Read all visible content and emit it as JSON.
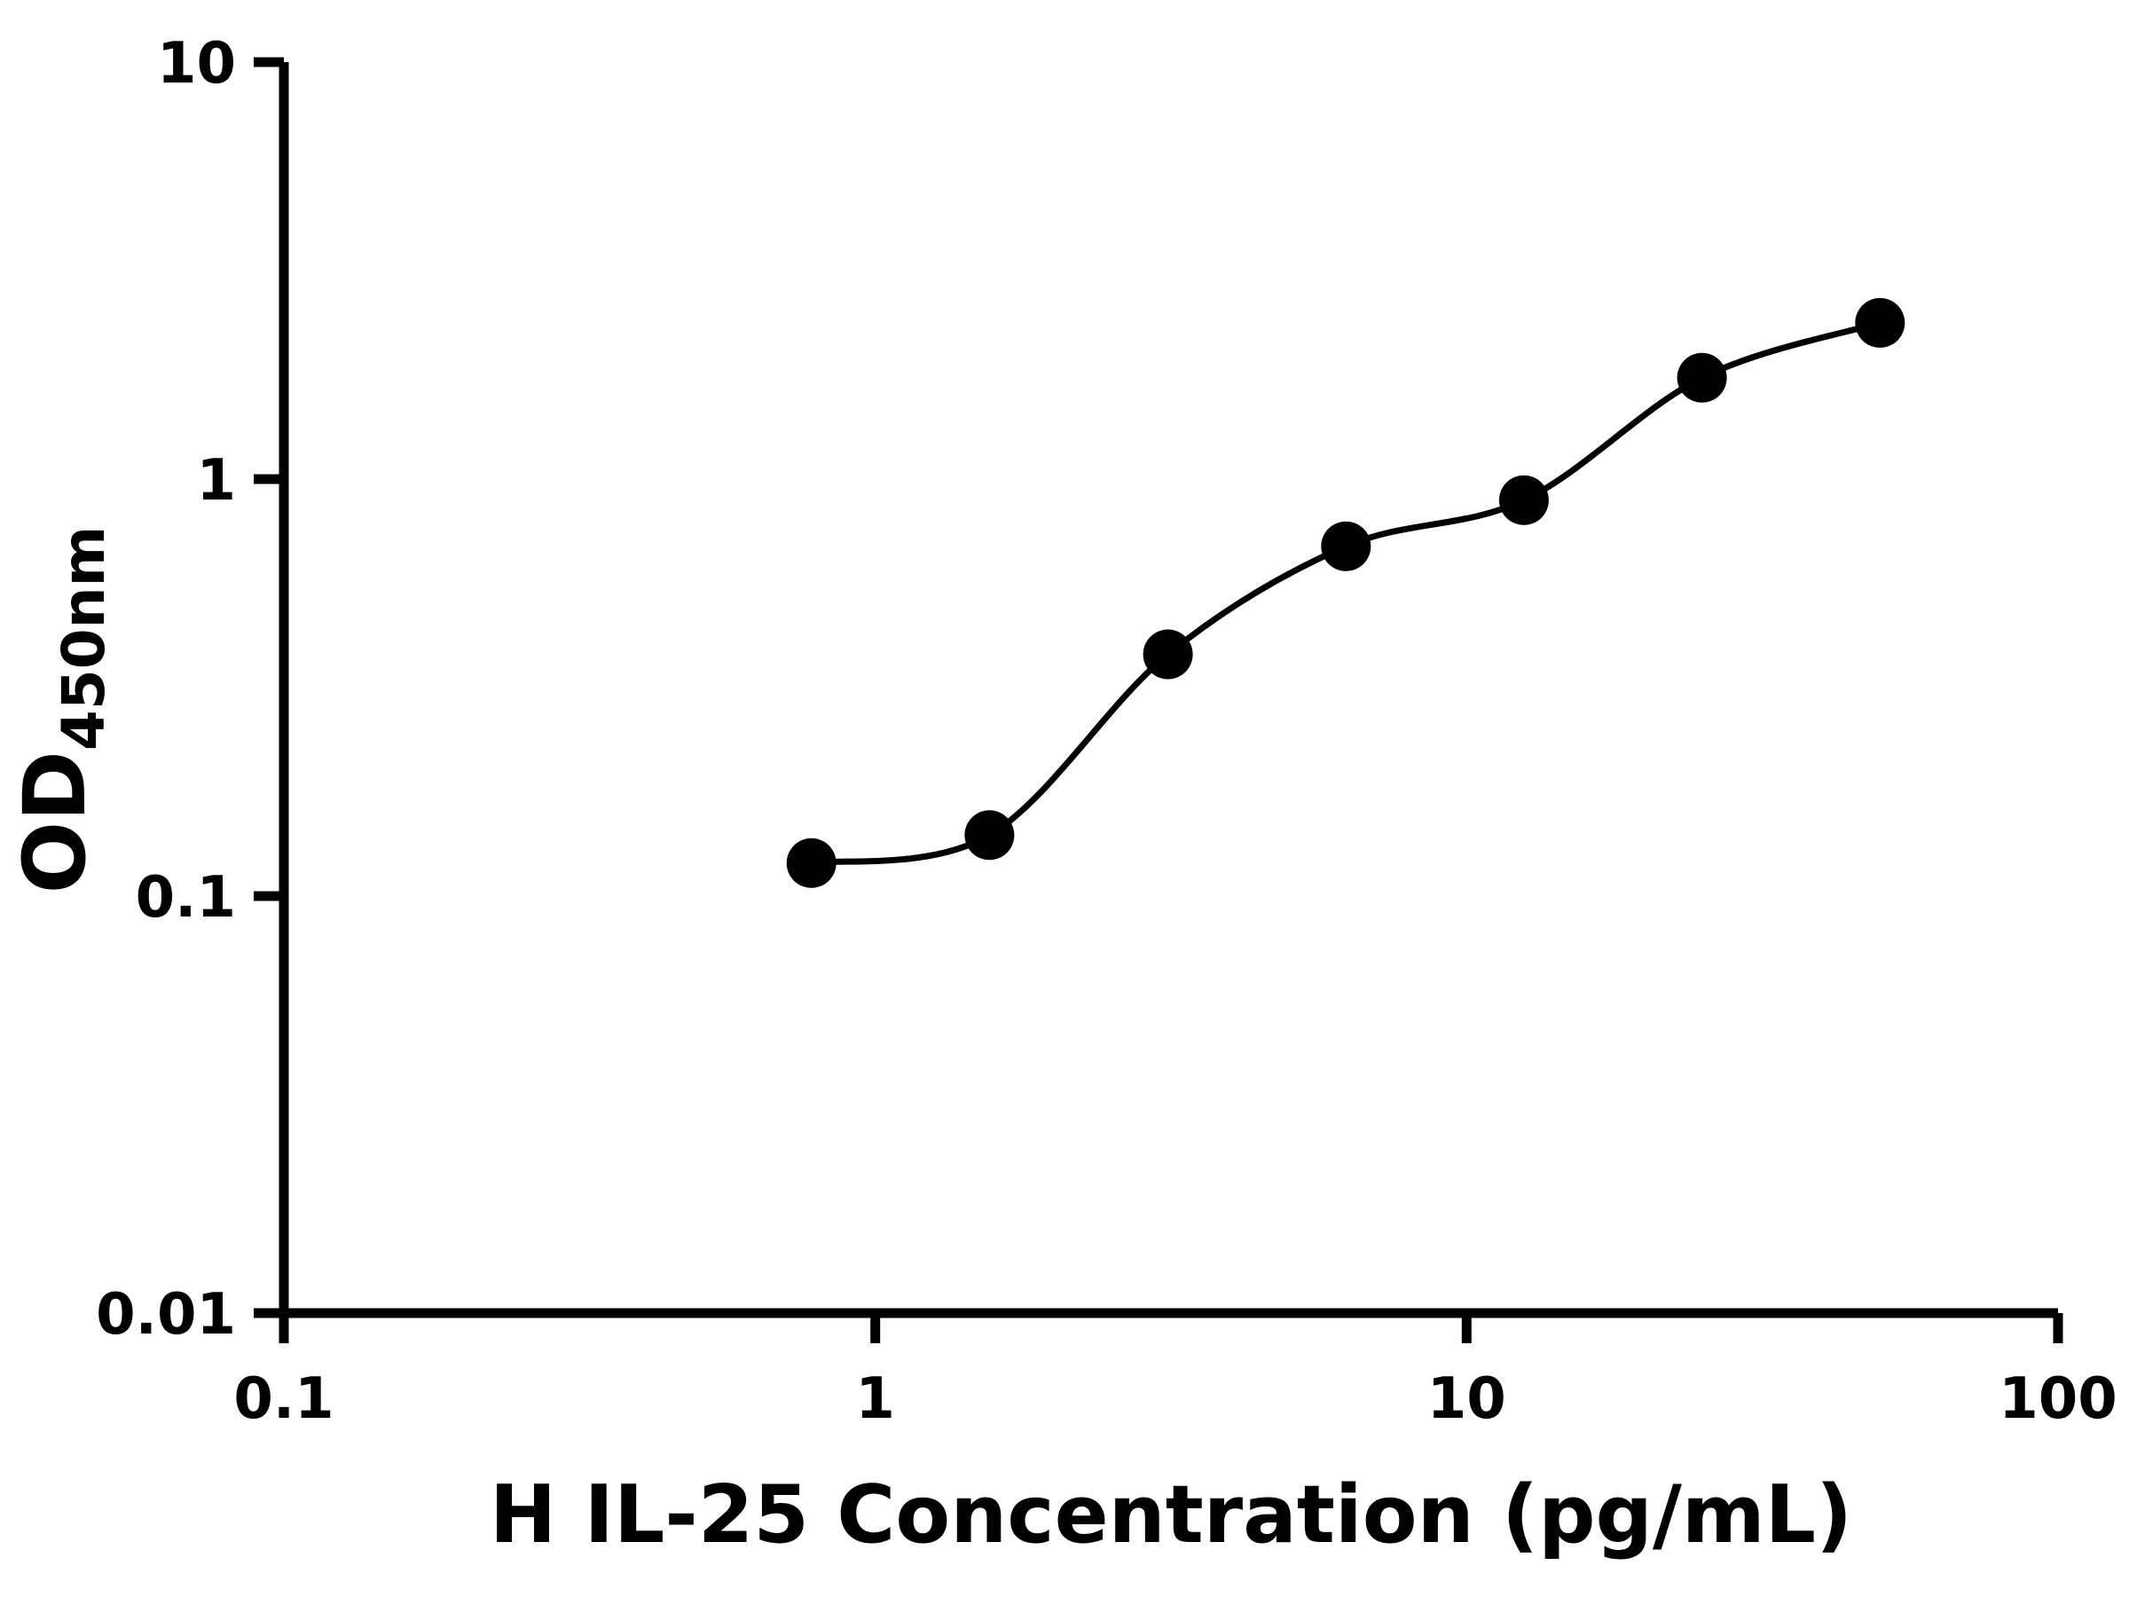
{
  "chart_data": {
    "type": "scatter",
    "xlabel": "H IL-25 Concentration (pg/mL)",
    "ylabel_main": "OD",
    "ylabel_sub": "450nm",
    "x_scale": "log",
    "y_scale": "log",
    "xlim": [
      0.1,
      100
    ],
    "ylim": [
      0.01,
      10
    ],
    "x_ticks": [
      0.1,
      1,
      10,
      100
    ],
    "x_tick_labels": [
      "0.1",
      "1",
      "10",
      "100"
    ],
    "y_ticks": [
      0.01,
      0.1,
      1,
      10
    ],
    "y_tick_labels": [
      "0.01",
      "0.1",
      "1",
      "10"
    ],
    "grid": false,
    "legend": "none",
    "series": [
      {
        "marker": "circle",
        "color": "#000000",
        "fit": "smooth",
        "x": [
          0.78,
          1.56,
          3.125,
          6.25,
          12.5,
          25,
          50
        ],
        "y": [
          0.12,
          0.14,
          0.38,
          0.69,
          0.89,
          1.75,
          2.37
        ]
      }
    ]
  },
  "colors": {
    "foreground": "#000000",
    "background": "#ffffff"
  }
}
